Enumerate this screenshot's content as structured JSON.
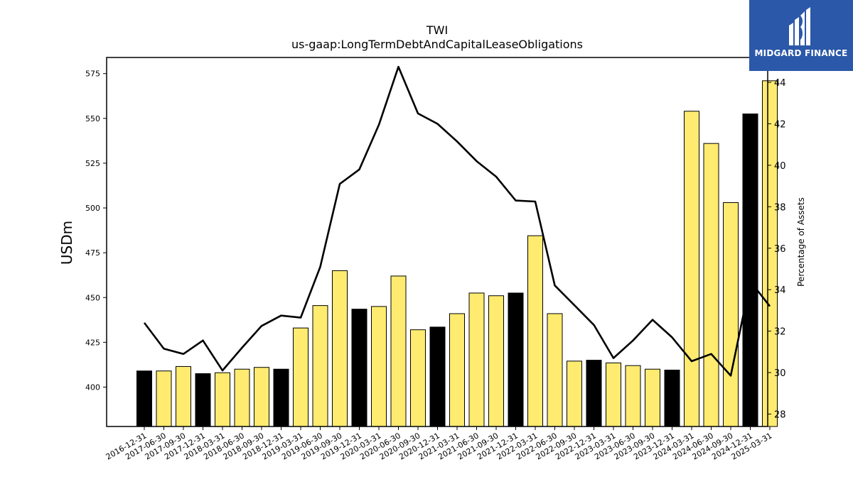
{
  "chart_data": {
    "type": "bar",
    "title": "TWI",
    "subtitle": "us-gaap:LongTermDebtAndCapitalLeaseObligations",
    "ylabel": "USDm",
    "ylabel_right": "Percentage of Assets",
    "ylim": [
      378,
      584
    ],
    "ylim_right": [
      27.4,
      45.2
    ],
    "yticks": [
      400,
      425,
      450,
      475,
      500,
      525,
      550,
      575
    ],
    "yticks_right": [
      28,
      30,
      32,
      34,
      36,
      38,
      40,
      42,
      44
    ],
    "categories": [
      "2016-12-31",
      "2017-06-30",
      "2017-09-30",
      "2017-12-31",
      "2018-03-31",
      "2018-06-30",
      "2018-09-30",
      "2018-12-31",
      "2019-03-31",
      "2019-06-30",
      "2019-09-30",
      "2019-12-31",
      "2020-03-31",
      "2020-06-30",
      "2020-09-30",
      "2020-12-31",
      "2021-03-31",
      "2021-06-30",
      "2021-09-30",
      "2021-12-31",
      "2022-03-31",
      "2022-06-30",
      "2022-09-30",
      "2022-12-31",
      "2023-03-31",
      "2023-06-30",
      "2023-09-30",
      "2023-12-31",
      "2024-03-31",
      "2024-06-30",
      "2024-09-30",
      "2024-12-31",
      "2025-03-31"
    ],
    "values": [
      409,
      409,
      411.5,
      407.5,
      408,
      410,
      411,
      410,
      433,
      445.5,
      465,
      443.5,
      445,
      462,
      432,
      433.5,
      441,
      452.5,
      451,
      452.5,
      484.5,
      441,
      414.5,
      415,
      413.5,
      412,
      410,
      409.5,
      554,
      536,
      503,
      552.5,
      571
    ],
    "bar_colors": [
      "#000000",
      "#ffeb70",
      "#ffeb70",
      "#000000",
      "#ffeb70",
      "#ffeb70",
      "#ffeb70",
      "#000000",
      "#ffeb70",
      "#ffeb70",
      "#ffeb70",
      "#000000",
      "#ffeb70",
      "#ffeb70",
      "#ffeb70",
      "#000000",
      "#ffeb70",
      "#ffeb70",
      "#ffeb70",
      "#000000",
      "#ffeb70",
      "#ffeb70",
      "#ffeb70",
      "#000000",
      "#ffeb70",
      "#ffeb70",
      "#ffeb70",
      "#000000",
      "#ffeb70",
      "#ffeb70",
      "#ffeb70",
      "#000000",
      "#ffeb70"
    ],
    "line_values": [
      32.4,
      31.15,
      30.9,
      31.55,
      30.1,
      31.2,
      32.25,
      32.75,
      32.65,
      35.1,
      39.1,
      39.8,
      41.95,
      44.75,
      42.5,
      42.0,
      41.15,
      40.2,
      39.45,
      38.3,
      38.25,
      34.2,
      33.25,
      32.3,
      30.7,
      31.55,
      32.55,
      31.7,
      30.55,
      30.9,
      29.85,
      34.4,
      33.2
    ],
    "line_color": "#000000",
    "grid": false,
    "legend": "none"
  },
  "logo": {
    "text": "MIDGARD FINANCE",
    "background": "#2b58a8",
    "foreground": "#ffffff"
  }
}
